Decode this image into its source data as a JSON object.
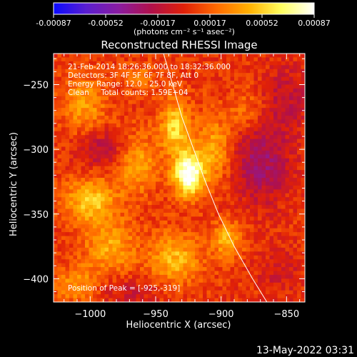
{
  "colorbar": {
    "tick_labels": [
      "-0.00087",
      "-0.00052",
      "-0.00017",
      "0.00017",
      "0.00052",
      "0.00087"
    ],
    "range": [
      -0.00087,
      0.00087
    ],
    "unit_label": "(photons cm⁻² s⁻¹ asec⁻²)",
    "colors": [
      "#0a0aff",
      "#5a1ed0",
      "#8a1ca0",
      "#b0104a",
      "#e02008",
      "#ff6a00",
      "#ffb000",
      "#ffff60",
      "#ffffff"
    ]
  },
  "chart_data": {
    "type": "heatmap",
    "title": "Reconstructed RHESSI Image",
    "xlabel": "Heliocentric X (arcsec)",
    "ylabel": "Heliocentric Y (arcsec)",
    "xlim": [
      -1028,
      -836
    ],
    "ylim": [
      -418,
      -226
    ],
    "x_ticks": [
      -1000,
      -950,
      -900,
      -850
    ],
    "y_ticks": [
      -250,
      -300,
      -350,
      -400
    ],
    "annotations": [
      "21-Feb-2014 18:26:36.000 to 18:32:36.000",
      "Detectors: 3F 4F 5F 6F 7F 8F, Att 0",
      "Energy Range: 12.0 - 25.0 keV",
      "Clean     Total counts: 1.59E+04"
    ],
    "peak_label": "Position of Peak = [-925,-319]",
    "peak": [
      -925,
      -319
    ],
    "limb_points": [
      [
        -944,
        -226
      ],
      [
        -937,
        -250
      ],
      [
        -930,
        -275
      ],
      [
        -921,
        -300
      ],
      [
        -912,
        -325
      ],
      [
        -902,
        -350
      ],
      [
        -890,
        -375
      ],
      [
        -876,
        -400
      ],
      [
        -865,
        -418
      ]
    ],
    "sources": [
      {
        "x": -925,
        "y": -319,
        "value": 0.00087,
        "sx": 8,
        "sy": 12
      },
      {
        "x": -935,
        "y": -282,
        "value": 0.0005,
        "sx": 8,
        "sy": 14
      },
      {
        "x": -965,
        "y": -310,
        "value": 0.00035,
        "sx": 12,
        "sy": 16
      },
      {
        "x": -1000,
        "y": -340,
        "value": 0.00045,
        "sx": 14,
        "sy": 12
      },
      {
        "x": -1005,
        "y": -265,
        "value": 0.00032,
        "sx": 12,
        "sy": 16
      },
      {
        "x": -905,
        "y": -300,
        "value": 0.00035,
        "sx": 10,
        "sy": 18
      },
      {
        "x": -895,
        "y": -370,
        "value": 0.0004,
        "sx": 8,
        "sy": 10
      },
      {
        "x": -935,
        "y": -385,
        "value": 0.0004,
        "sx": 14,
        "sy": 14
      },
      {
        "x": -985,
        "y": -375,
        "value": 0.00035,
        "sx": 14,
        "sy": 14
      },
      {
        "x": -1010,
        "y": -405,
        "value": 0.0003,
        "sx": 12,
        "sy": 10
      },
      {
        "x": -880,
        "y": -270,
        "value": 0.0002,
        "sx": 10,
        "sy": 12
      },
      {
        "x": -960,
        "y": -245,
        "value": 0.00018,
        "sx": 10,
        "sy": 8
      },
      {
        "x": -870,
        "y": -310,
        "value": -0.00035,
        "sx": 16,
        "sy": 22
      },
      {
        "x": -990,
        "y": -300,
        "value": -0.00028,
        "sx": 14,
        "sy": 10
      },
      {
        "x": -970,
        "y": -410,
        "value": -0.00015,
        "sx": 20,
        "sy": 8
      },
      {
        "x": -850,
        "y": -260,
        "value": -0.0002,
        "sx": 14,
        "sy": 18
      },
      {
        "x": -855,
        "y": -395,
        "value": -0.00015,
        "sx": 12,
        "sy": 12
      }
    ]
  },
  "footer": {
    "timestamp": "13-May-2022 03:31"
  }
}
